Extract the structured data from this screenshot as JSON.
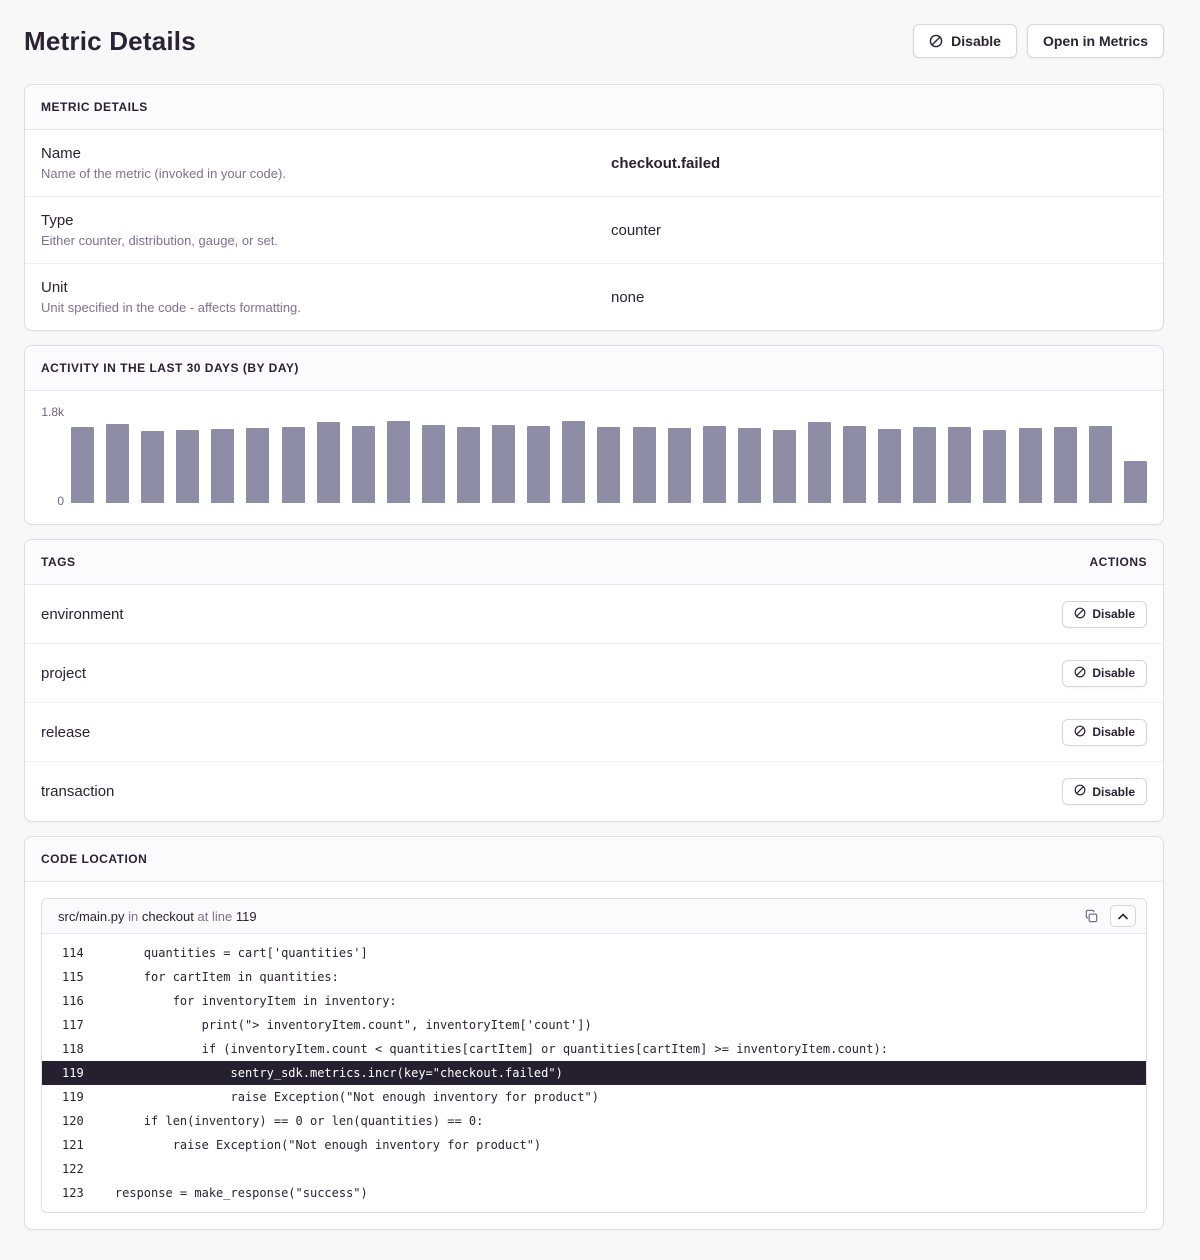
{
  "page": {
    "title": "Metric Details"
  },
  "header": {
    "disable_button": "Disable",
    "open_button": "Open in Metrics"
  },
  "metric_details": {
    "panel_title": "METRIC DETAILS",
    "rows": [
      {
        "label": "Name",
        "description": "Name of the metric (invoked in your code).",
        "value": "checkout.failed",
        "emphasis": true
      },
      {
        "label": "Type",
        "description": "Either counter, distribution, gauge, or set.",
        "value": "counter",
        "emphasis": false
      },
      {
        "label": "Unit",
        "description": "Unit specified in the code - affects formatting.",
        "value": "none",
        "emphasis": false
      }
    ]
  },
  "activity": {
    "panel_title": "ACTIVITY IN THE LAST 30 DAYS (BY DAY)",
    "y_max_label": "1.8k",
    "y_min_label": "0"
  },
  "chart_data": {
    "type": "bar",
    "title": "Activity in the last 30 days (by day)",
    "xlabel": "",
    "ylabel": "",
    "ylim": [
      0,
      1800
    ],
    "y_tick_labels": [
      "0",
      "1.8k"
    ],
    "x_tick_labels_visible": false,
    "grid": false,
    "legend": false,
    "bar_color": "#8e8da6",
    "values": [
      1500,
      1560,
      1420,
      1440,
      1460,
      1480,
      1500,
      1600,
      1530,
      1620,
      1550,
      1500,
      1550,
      1520,
      1620,
      1500,
      1500,
      1480,
      1530,
      1480,
      1440,
      1600,
      1530,
      1470,
      1500,
      1500,
      1450,
      1480,
      1500,
      1520,
      840
    ]
  },
  "tags": {
    "panel_title": "TAGS",
    "actions_title": "ACTIONS",
    "disable_label": "Disable",
    "items": [
      "environment",
      "project",
      "release",
      "transaction"
    ]
  },
  "code_location": {
    "panel_title": "CODE LOCATION",
    "file": "src/main.py",
    "in_word": "in",
    "function": "checkout",
    "at_line_word": "at line",
    "line_number": "119",
    "lines": [
      {
        "num": "114",
        "text": "        quantities = cart['quantities']",
        "highlighted": false
      },
      {
        "num": "115",
        "text": "        for cartItem in quantities:",
        "highlighted": false
      },
      {
        "num": "116",
        "text": "            for inventoryItem in inventory:",
        "highlighted": false
      },
      {
        "num": "117",
        "text": "                print(\"> inventoryItem.count\", inventoryItem['count'])",
        "highlighted": false
      },
      {
        "num": "118",
        "text": "                if (inventoryItem.count < quantities[cartItem] or quantities[cartItem] >= inventoryItem.count):",
        "highlighted": false
      },
      {
        "num": "119",
        "text": "                    sentry_sdk.metrics.incr(key=\"checkout.failed\")",
        "highlighted": true
      },
      {
        "num": "119",
        "text": "                    raise Exception(\"Not enough inventory for product\")",
        "highlighted": false
      },
      {
        "num": "120",
        "text": "        if len(inventory) == 0 or len(quantities) == 0:",
        "highlighted": false
      },
      {
        "num": "121",
        "text": "            raise Exception(\"Not enough inventory for product\")",
        "highlighted": false
      },
      {
        "num": "122",
        "text": "",
        "highlighted": false
      },
      {
        "num": "123",
        "text": "    response = make_response(\"success\")",
        "highlighted": false
      }
    ]
  },
  "colors": {
    "page_background": "#f8f8f9",
    "panel_background": "#ffffff",
    "panel_border": "#e0dce5",
    "panel_header_background": "#fbfafc",
    "text_dark": "#2b2233",
    "text_gray": "#80708f",
    "bar": "#8e8da6",
    "code_highlight_background": "#261f30"
  }
}
